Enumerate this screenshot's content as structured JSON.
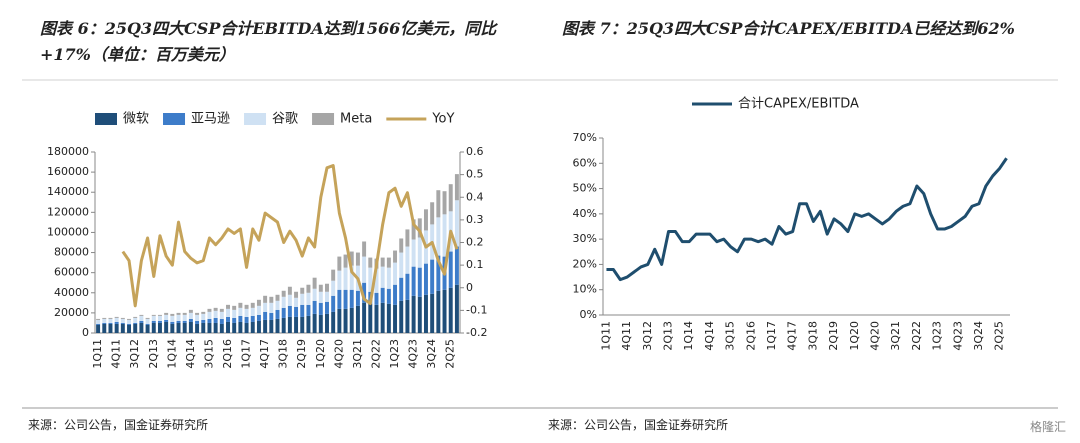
{
  "chart_data": [
    {
      "type": "bar",
      "stacked": true,
      "title": "图表 6：25Q3四大CSP合计EBITDA达到1566亿美元，同比+17%（单位：百万美元）",
      "source": "来源：公司公告，国金证券研究所",
      "categories": [
        "1Q11",
        null,
        null,
        "4Q11",
        null,
        null,
        "3Q12",
        null,
        null,
        "2Q13",
        null,
        null,
        "1Q14",
        null,
        null,
        "4Q14",
        null,
        null,
        "3Q15",
        null,
        null,
        "2Q16",
        null,
        null,
        "1Q17",
        null,
        null,
        "4Q17",
        null,
        null,
        "3Q18",
        null,
        null,
        "2Q19",
        null,
        null,
        "1Q20",
        null,
        null,
        "4Q20",
        null,
        null,
        "3Q21",
        null,
        null,
        "2Q22",
        null,
        null,
        "1Q23",
        null,
        null,
        "4Q23",
        null,
        null,
        "3Q24",
        null,
        null,
        "2Q25",
        null
      ],
      "series": [
        {
          "name": "微软",
          "type": "bar",
          "color": "#1f4e79",
          "values": [
            8000,
            9000,
            9000,
            9000,
            9000,
            8000,
            9000,
            10000,
            8000,
            10000,
            10000,
            11000,
            9000,
            10000,
            10000,
            11000,
            9000,
            10000,
            10000,
            10000,
            9000,
            11000,
            10000,
            11000,
            10000,
            11000,
            12000,
            13000,
            13000,
            14000,
            15000,
            16000,
            16000,
            16000,
            17000,
            19000,
            18000,
            19000,
            21000,
            24000,
            24000,
            25000,
            27000,
            30000,
            29000,
            28000,
            30000,
            29000,
            28000,
            32000,
            33000,
            37000,
            36000,
            38000,
            39000,
            42000,
            43000,
            45000,
            48000
          ]
        },
        {
          "name": "亚马逊",
          "type": "bar",
          "color": "#3d7cc9",
          "values": [
            1000,
            1000,
            1000,
            2000,
            1000,
            1000,
            1000,
            2000,
            1000,
            2000,
            2000,
            2000,
            2000,
            2000,
            2000,
            3000,
            3000,
            3000,
            4000,
            5000,
            5000,
            5000,
            5000,
            6000,
            6000,
            6000,
            6000,
            8000,
            7000,
            9000,
            10000,
            11000,
            10000,
            12000,
            11000,
            13000,
            12000,
            12000,
            16000,
            19000,
            19000,
            18000,
            15000,
            20000,
            12000,
            12000,
            15000,
            15000,
            20000,
            23000,
            26000,
            29000,
            29000,
            31000,
            34000,
            35000,
            33000,
            36000,
            38000
          ]
        },
        {
          "name": "谷歌",
          "type": "bar",
          "color": "#cfe1f3",
          "values": [
            4000,
            4000,
            4000,
            4000,
            4000,
            4000,
            5000,
            5000,
            5000,
            5000,
            5000,
            5000,
            6000,
            6000,
            6000,
            6000,
            6000,
            6000,
            7000,
            7000,
            7000,
            8000,
            8000,
            8000,
            8000,
            8000,
            9000,
            9000,
            10000,
            9000,
            11000,
            11000,
            9000,
            11000,
            12000,
            12000,
            11000,
            10000,
            15000,
            19000,
            22000,
            24000,
            25000,
            26000,
            24000,
            24000,
            21000,
            21000,
            22000,
            25000,
            27000,
            27000,
            30000,
            33000,
            35000,
            38000,
            42000,
            40000,
            46000
          ]
        },
        {
          "name": "Meta",
          "type": "bar",
          "color": "#a6a6a6",
          "values": [
            1000,
            1000,
            1000,
            1000,
            1000,
            1000,
            1000,
            1000,
            1000,
            1000,
            1000,
            2000,
            2000,
            2000,
            2000,
            3000,
            2000,
            2000,
            3000,
            3000,
            3000,
            4000,
            4000,
            5000,
            4000,
            5000,
            6000,
            7000,
            6000,
            6000,
            6000,
            8000,
            6000,
            6000,
            8000,
            11000,
            7000,
            8000,
            11000,
            14000,
            13000,
            14000,
            13000,
            15000,
            10000,
            10000,
            9000,
            10000,
            12000,
            14000,
            17000,
            20000,
            19000,
            21000,
            22000,
            27000,
            23000,
            27000,
            26000
          ]
        },
        {
          "name": "YoY",
          "type": "line",
          "axis": "y2",
          "color": "#c5a35a",
          "values": [
            null,
            null,
            null,
            null,
            0.16,
            0.12,
            -0.08,
            0.12,
            0.22,
            0.05,
            0.23,
            0.14,
            0.1,
            0.29,
            0.16,
            0.13,
            0.11,
            0.12,
            0.22,
            0.19,
            0.22,
            0.26,
            0.24,
            0.26,
            0.09,
            0.26,
            0.21,
            0.33,
            0.31,
            0.29,
            0.2,
            0.25,
            0.21,
            0.14,
            0.22,
            0.18,
            0.4,
            0.53,
            0.54,
            0.33,
            0.22,
            0.07,
            0.04,
            -0.05,
            -0.07,
            0.1,
            0.28,
            0.42,
            0.44,
            0.36,
            0.42,
            0.28,
            0.25,
            0.18,
            0.2,
            0.12,
            0.06,
            0.25,
            0.17
          ]
        }
      ],
      "ylim": [
        0,
        180000
      ],
      "yticks": [
        0,
        20000,
        40000,
        60000,
        80000,
        100000,
        120000,
        140000,
        160000,
        180000
      ],
      "y2lim": [
        -0.2,
        0.6
      ],
      "y2ticks": [
        -0.2,
        -0.1,
        0,
        0.1,
        0.2,
        0.3,
        0.4,
        0.5,
        0.6
      ],
      "grid": false
    },
    {
      "type": "line",
      "title": "图表 7：25Q3四大CSP合计CAPEX/EBITDA已经达到62%",
      "source": "来源：公司公告，国金证券研究所",
      "watermark": "格隆汇",
      "categories": [
        "1Q11",
        null,
        null,
        "4Q11",
        null,
        null,
        "3Q12",
        null,
        null,
        "2Q13",
        null,
        null,
        "1Q14",
        null,
        null,
        "4Q14",
        null,
        null,
        "3Q15",
        null,
        null,
        "2Q16",
        null,
        null,
        "1Q17",
        null,
        null,
        "4Q17",
        null,
        null,
        "3Q18",
        null,
        null,
        "2Q19",
        null,
        null,
        "1Q20",
        null,
        null,
        "4Q20",
        null,
        null,
        "3Q21",
        null,
        null,
        "2Q22",
        null,
        null,
        "1Q23",
        null,
        null,
        "4Q23",
        null,
        null,
        "3Q24",
        null,
        null,
        "2Q25",
        null
      ],
      "series": [
        {
          "name": "合计CAPEX/EBITDA",
          "color": "#1f4e6e",
          "values": [
            18,
            18,
            14,
            15,
            17,
            19,
            20,
            26,
            20,
            33,
            33,
            29,
            29,
            32,
            32,
            32,
            29,
            30,
            27,
            25,
            30,
            30,
            29,
            30,
            28,
            35,
            32,
            33,
            44,
            44,
            37,
            41,
            32,
            38,
            36,
            33,
            40,
            39,
            40,
            38,
            36,
            38,
            41,
            43,
            44,
            51,
            48,
            40,
            34,
            34,
            35,
            37,
            39,
            43,
            44,
            51,
            55,
            58,
            62
          ]
        }
      ],
      "ylim": [
        0,
        70
      ],
      "yticks": [
        {
          "value": 0,
          "label": "0%"
        },
        {
          "value": 10,
          "label": "10%"
        },
        {
          "value": 20,
          "label": "20%"
        },
        {
          "value": 30,
          "label": "30%"
        },
        {
          "value": 40,
          "label": "40%"
        },
        {
          "value": 50,
          "label": "50%"
        },
        {
          "value": 60,
          "label": "60%"
        },
        {
          "value": 70,
          "label": "70%"
        }
      ],
      "grid": false
    }
  ]
}
